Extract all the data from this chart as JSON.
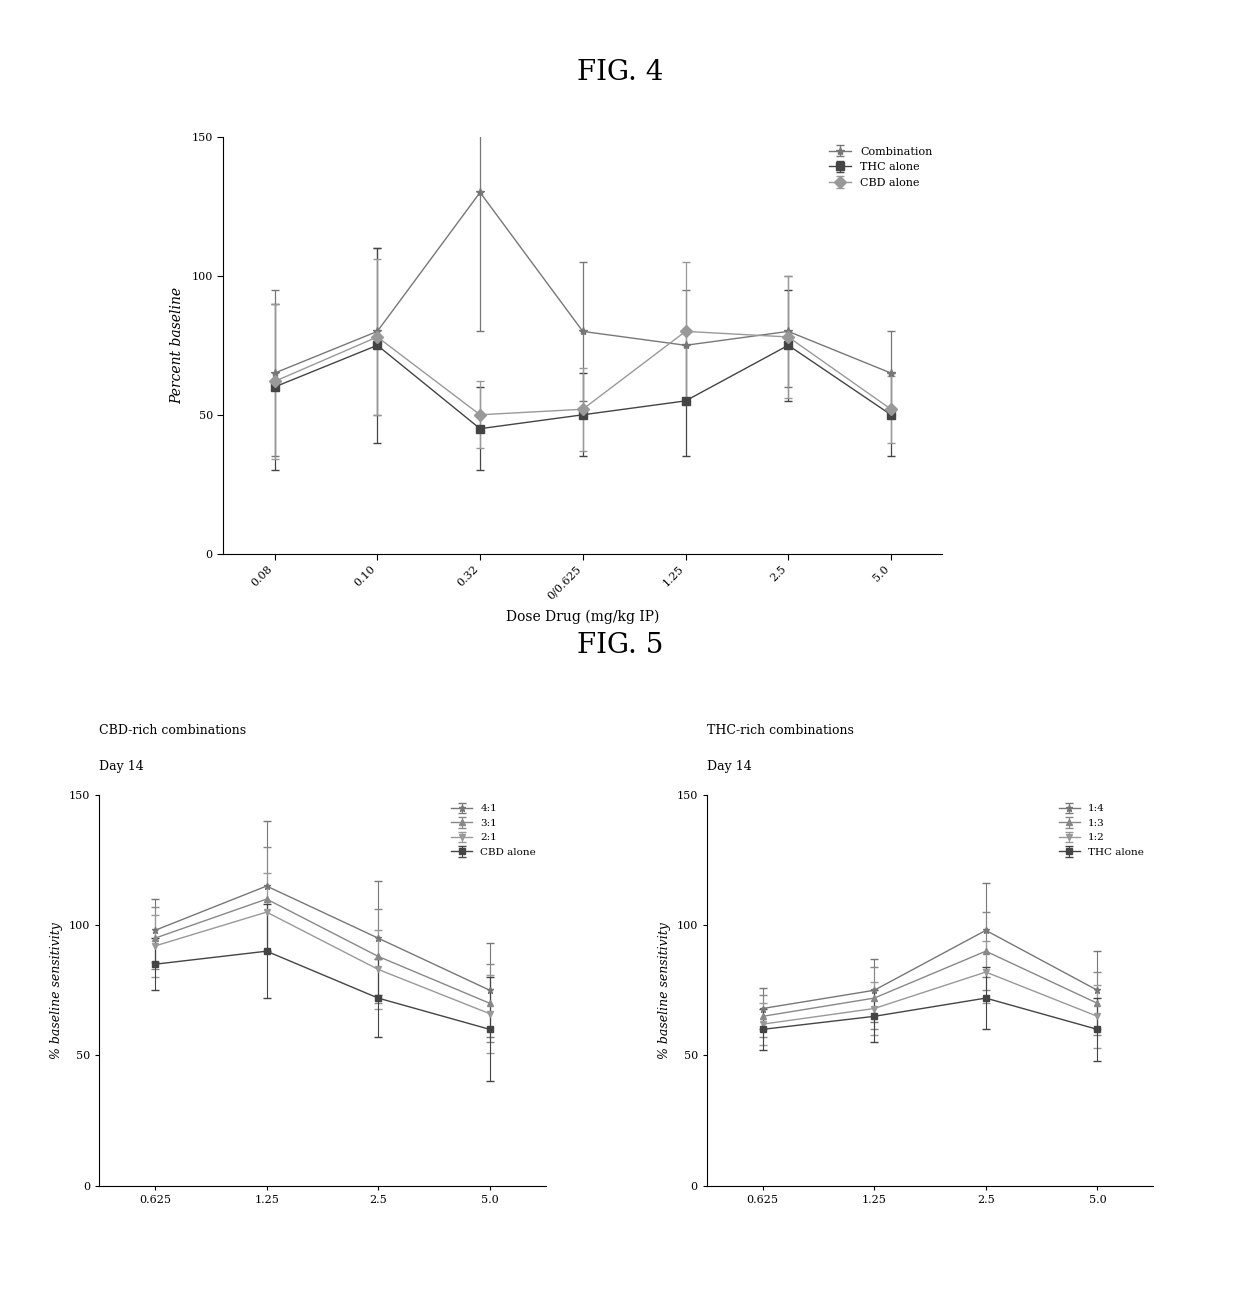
{
  "fig4": {
    "title": "FIG. 4",
    "xlabel": "Dose Drug (mg/kg IP)",
    "ylabel": "Percent baseline",
    "xtick_labels": [
      "0.08",
      "0.10",
      "0.32",
      "0/0.625",
      "1.25",
      "2.5",
      "5.0"
    ],
    "ylim": [
      0,
      150
    ],
    "yticks": [
      0,
      50,
      100,
      150
    ],
    "series": [
      {
        "label": "Combination",
        "y": [
          65,
          80,
          130,
          80,
          75,
          80,
          65
        ],
        "yerr": [
          30,
          30,
          50,
          25,
          20,
          20,
          15
        ],
        "marker": "*",
        "color": "#777777",
        "linestyle": "-"
      },
      {
        "label": "THC alone",
        "y": [
          60,
          75,
          45,
          50,
          55,
          75,
          50
        ],
        "yerr": [
          30,
          35,
          15,
          15,
          20,
          20,
          15
        ],
        "marker": "s",
        "color": "#444444",
        "linestyle": "-"
      },
      {
        "label": "CBD alone",
        "y": [
          62,
          78,
          50,
          52,
          80,
          78,
          52
        ],
        "yerr": [
          28,
          28,
          12,
          15,
          25,
          22,
          12
        ],
        "marker": "D",
        "color": "#999999",
        "linestyle": "-"
      }
    ]
  },
  "fig5": {
    "title": "FIG. 5",
    "left_title_line1": "CBD-rich combinations",
    "left_title_line2": "Day 14",
    "right_title_line1": "THC-rich combinations",
    "right_title_line2": "Day 14",
    "ylabel": "% baseline sensitivity",
    "left_xtick_labels": [
      "0.625",
      "1.25",
      "2.5",
      "5.0"
    ],
    "right_xtick_labels": [
      "0.625",
      "1.25",
      "2.5",
      "5.0"
    ],
    "ylim": [
      0,
      150
    ],
    "yticks": [
      0,
      50,
      100,
      150
    ],
    "left_series": [
      {
        "label": "4:1",
        "y": [
          98,
          115,
          95,
          75
        ],
        "yerr": [
          12,
          25,
          22,
          18
        ],
        "marker": "*",
        "color": "#777777",
        "linestyle": "-"
      },
      {
        "label": "3:1",
        "y": [
          95,
          110,
          88,
          70
        ],
        "yerr": [
          12,
          20,
          18,
          15
        ],
        "marker": "^",
        "color": "#888888",
        "linestyle": "-"
      },
      {
        "label": "2:1",
        "y": [
          92,
          105,
          83,
          66
        ],
        "yerr": [
          12,
          15,
          15,
          15
        ],
        "marker": "v",
        "color": "#999999",
        "linestyle": "-"
      },
      {
        "label": "CBD alone",
        "y": [
          85,
          90,
          72,
          60
        ],
        "yerr": [
          10,
          18,
          15,
          20
        ],
        "marker": "s",
        "color": "#444444",
        "linestyle": "-"
      }
    ],
    "right_series": [
      {
        "label": "1:4",
        "y": [
          68,
          75,
          98,
          75
        ],
        "yerr": [
          8,
          12,
          18,
          15
        ],
        "marker": "*",
        "color": "#777777",
        "linestyle": "-"
      },
      {
        "label": "1:3",
        "y": [
          65,
          72,
          90,
          70
        ],
        "yerr": [
          8,
          12,
          15,
          12
        ],
        "marker": "^",
        "color": "#888888",
        "linestyle": "-"
      },
      {
        "label": "1:2",
        "y": [
          62,
          68,
          82,
          65
        ],
        "yerr": [
          8,
          10,
          12,
          12
        ],
        "marker": "v",
        "color": "#999999",
        "linestyle": "-"
      },
      {
        "label": "THC alone",
        "y": [
          60,
          65,
          72,
          60
        ],
        "yerr": [
          8,
          10,
          12,
          12
        ],
        "marker": "s",
        "color": "#444444",
        "linestyle": "-"
      }
    ]
  },
  "background_color": "#ffffff",
  "font_family": "DejaVu Serif"
}
